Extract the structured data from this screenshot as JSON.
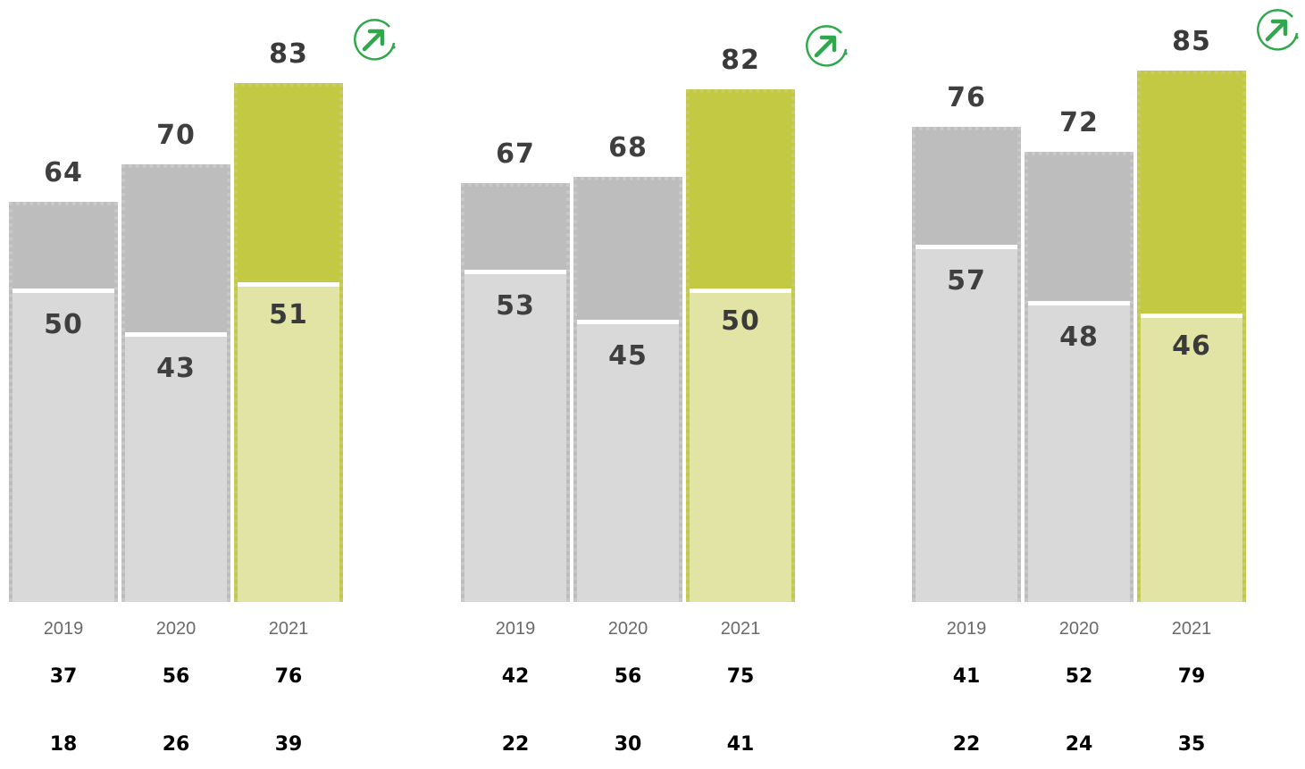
{
  "colors": {
    "bar_total": "#bdbdbd",
    "bar_base": "#d9d9d9",
    "highlight_total": "#c4c944",
    "highlight_base": "#e1e4a5",
    "trend_icon": "#2ea84a",
    "label_text": "#3f3f3f"
  },
  "icon": "trend-up-arrow-icon",
  "chart_data": [
    {
      "type": "bar",
      "categories": [
        "2019",
        "2020",
        "2021"
      ],
      "series": [
        {
          "values": [
            64,
            70,
            83
          ]
        },
        {
          "values": [
            50,
            43,
            51
          ]
        }
      ],
      "rows": [
        [
          37,
          56,
          76
        ],
        [
          18,
          26,
          39
        ]
      ],
      "highlight_category": "2021",
      "ylim": [
        0,
        100
      ],
      "grid": false,
      "trend": "up"
    },
    {
      "type": "bar",
      "categories": [
        "2019",
        "2020",
        "2021"
      ],
      "series": [
        {
          "values": [
            67,
            68,
            82
          ]
        },
        {
          "values": [
            53,
            45,
            50
          ]
        }
      ],
      "rows": [
        [
          42,
          56,
          75
        ],
        [
          22,
          30,
          41
        ]
      ],
      "highlight_category": "2021",
      "ylim": [
        0,
        100
      ],
      "grid": false,
      "trend": "up"
    },
    {
      "type": "bar",
      "categories": [
        "2019",
        "2020",
        "2021"
      ],
      "series": [
        {
          "values": [
            76,
            72,
            85
          ]
        },
        {
          "values": [
            57,
            48,
            46
          ]
        }
      ],
      "rows": [
        [
          41,
          52,
          79
        ],
        [
          22,
          24,
          35
        ]
      ],
      "highlight_category": "2021",
      "ylim": [
        0,
        100
      ],
      "grid": false,
      "trend": "up"
    }
  ]
}
